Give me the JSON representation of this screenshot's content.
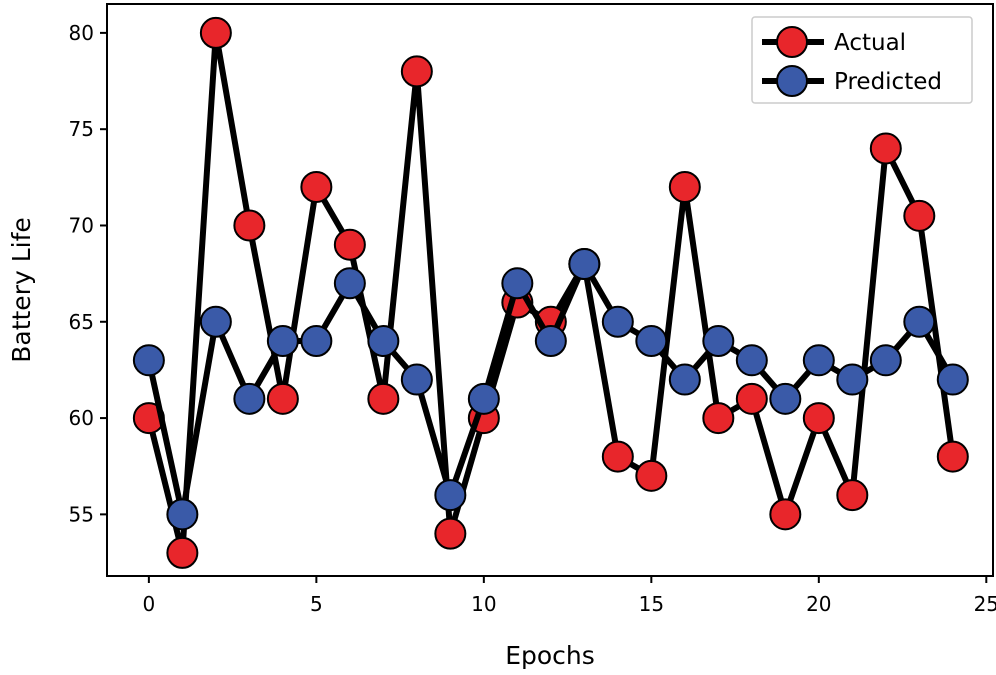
{
  "chart_data": {
    "type": "line",
    "title": "",
    "xlabel": "Epochs",
    "ylabel": "Battery Life",
    "xlim": [
      -1.25,
      25.2
    ],
    "ylim": [
      51.8,
      81.5
    ],
    "xticks": [
      0,
      5,
      10,
      15,
      20,
      25
    ],
    "yticks": [
      55,
      60,
      65,
      70,
      75,
      80
    ],
    "grid": false,
    "legend_position": "top-right",
    "x": [
      0,
      1,
      2,
      3,
      4,
      5,
      6,
      7,
      8,
      9,
      10,
      11,
      12,
      13,
      14,
      15,
      16,
      17,
      18,
      19,
      20,
      21,
      22,
      23,
      24
    ],
    "series": [
      {
        "name": "Actual",
        "color": "#e8262b",
        "line_color": "#000000",
        "values": [
          60,
          53,
          80,
          70,
          61,
          72,
          69,
          61,
          78,
          54,
          60,
          66,
          65,
          68,
          58,
          57,
          72,
          60,
          61,
          55,
          60,
          56,
          74,
          70.5,
          58
        ]
      },
      {
        "name": "Predicted",
        "color": "#3a5aa8",
        "line_color": "#000000",
        "values": [
          63,
          55,
          65,
          61,
          64,
          64,
          67,
          64,
          62,
          56,
          61,
          67,
          64,
          68,
          65,
          64,
          62,
          64,
          63,
          61,
          63,
          62,
          63,
          65,
          62
        ]
      }
    ]
  }
}
